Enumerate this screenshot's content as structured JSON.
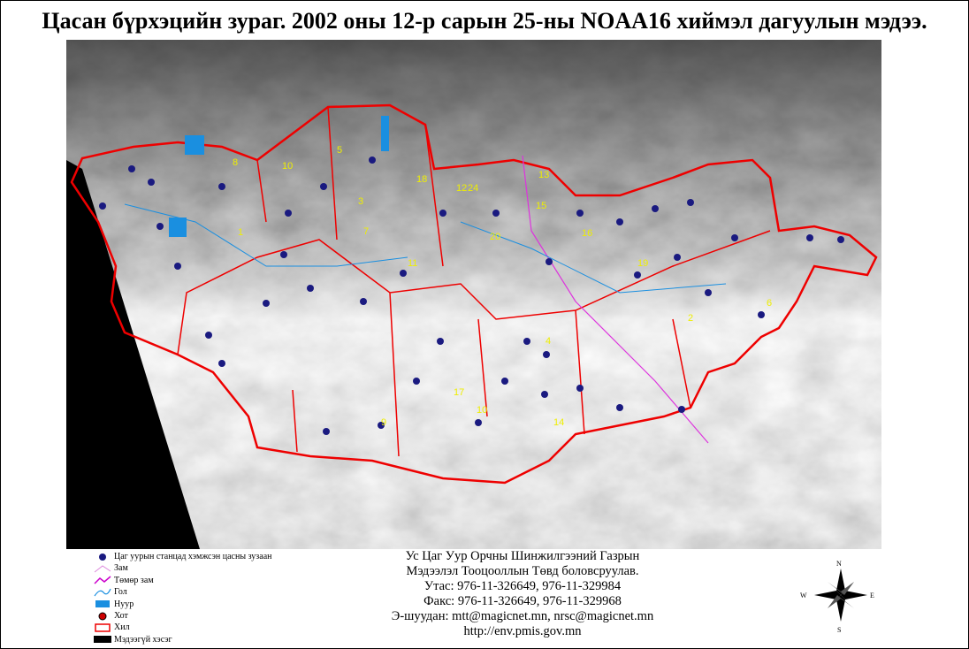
{
  "title": "Цасан бүрхэцийн зураг. 2002 оны 12-р сарын 25-ны NOAA16 хиймэл дагуулын мэдээ.",
  "station_labels": [
    "1",
    "8",
    "10",
    "5",
    "3",
    "12",
    "24",
    "13",
    "15",
    "18",
    "20",
    "11",
    "7",
    "16",
    "14",
    "17",
    "10",
    "9",
    "4",
    "6",
    "2",
    "19"
  ],
  "legend": [
    "Цаг уурын станцад хэмжсэн цасны зузаан",
    "Зам",
    "Төмөр зам",
    "Гол",
    "Нуур",
    "Хот",
    "Хил",
    "Мэдээгүй хэсэг"
  ],
  "info": [
    "Ус Цаг Уур Орчны Шинжилгээний Газрын",
    "Мэдээлэл Тооцооллын Төвд боловсруулав.",
    "Утас: 976-11-326649, 976-11-329984",
    "Факс: 976-11-326649, 976-11-329968",
    "Э-шуудан: mtt@magicnet.mn, nrsc@magicnet.mn",
    "http://env.pmis.gov.mn"
  ],
  "compass": {
    "n": "N",
    "w": "W",
    "e": "E",
    "s": "S"
  }
}
